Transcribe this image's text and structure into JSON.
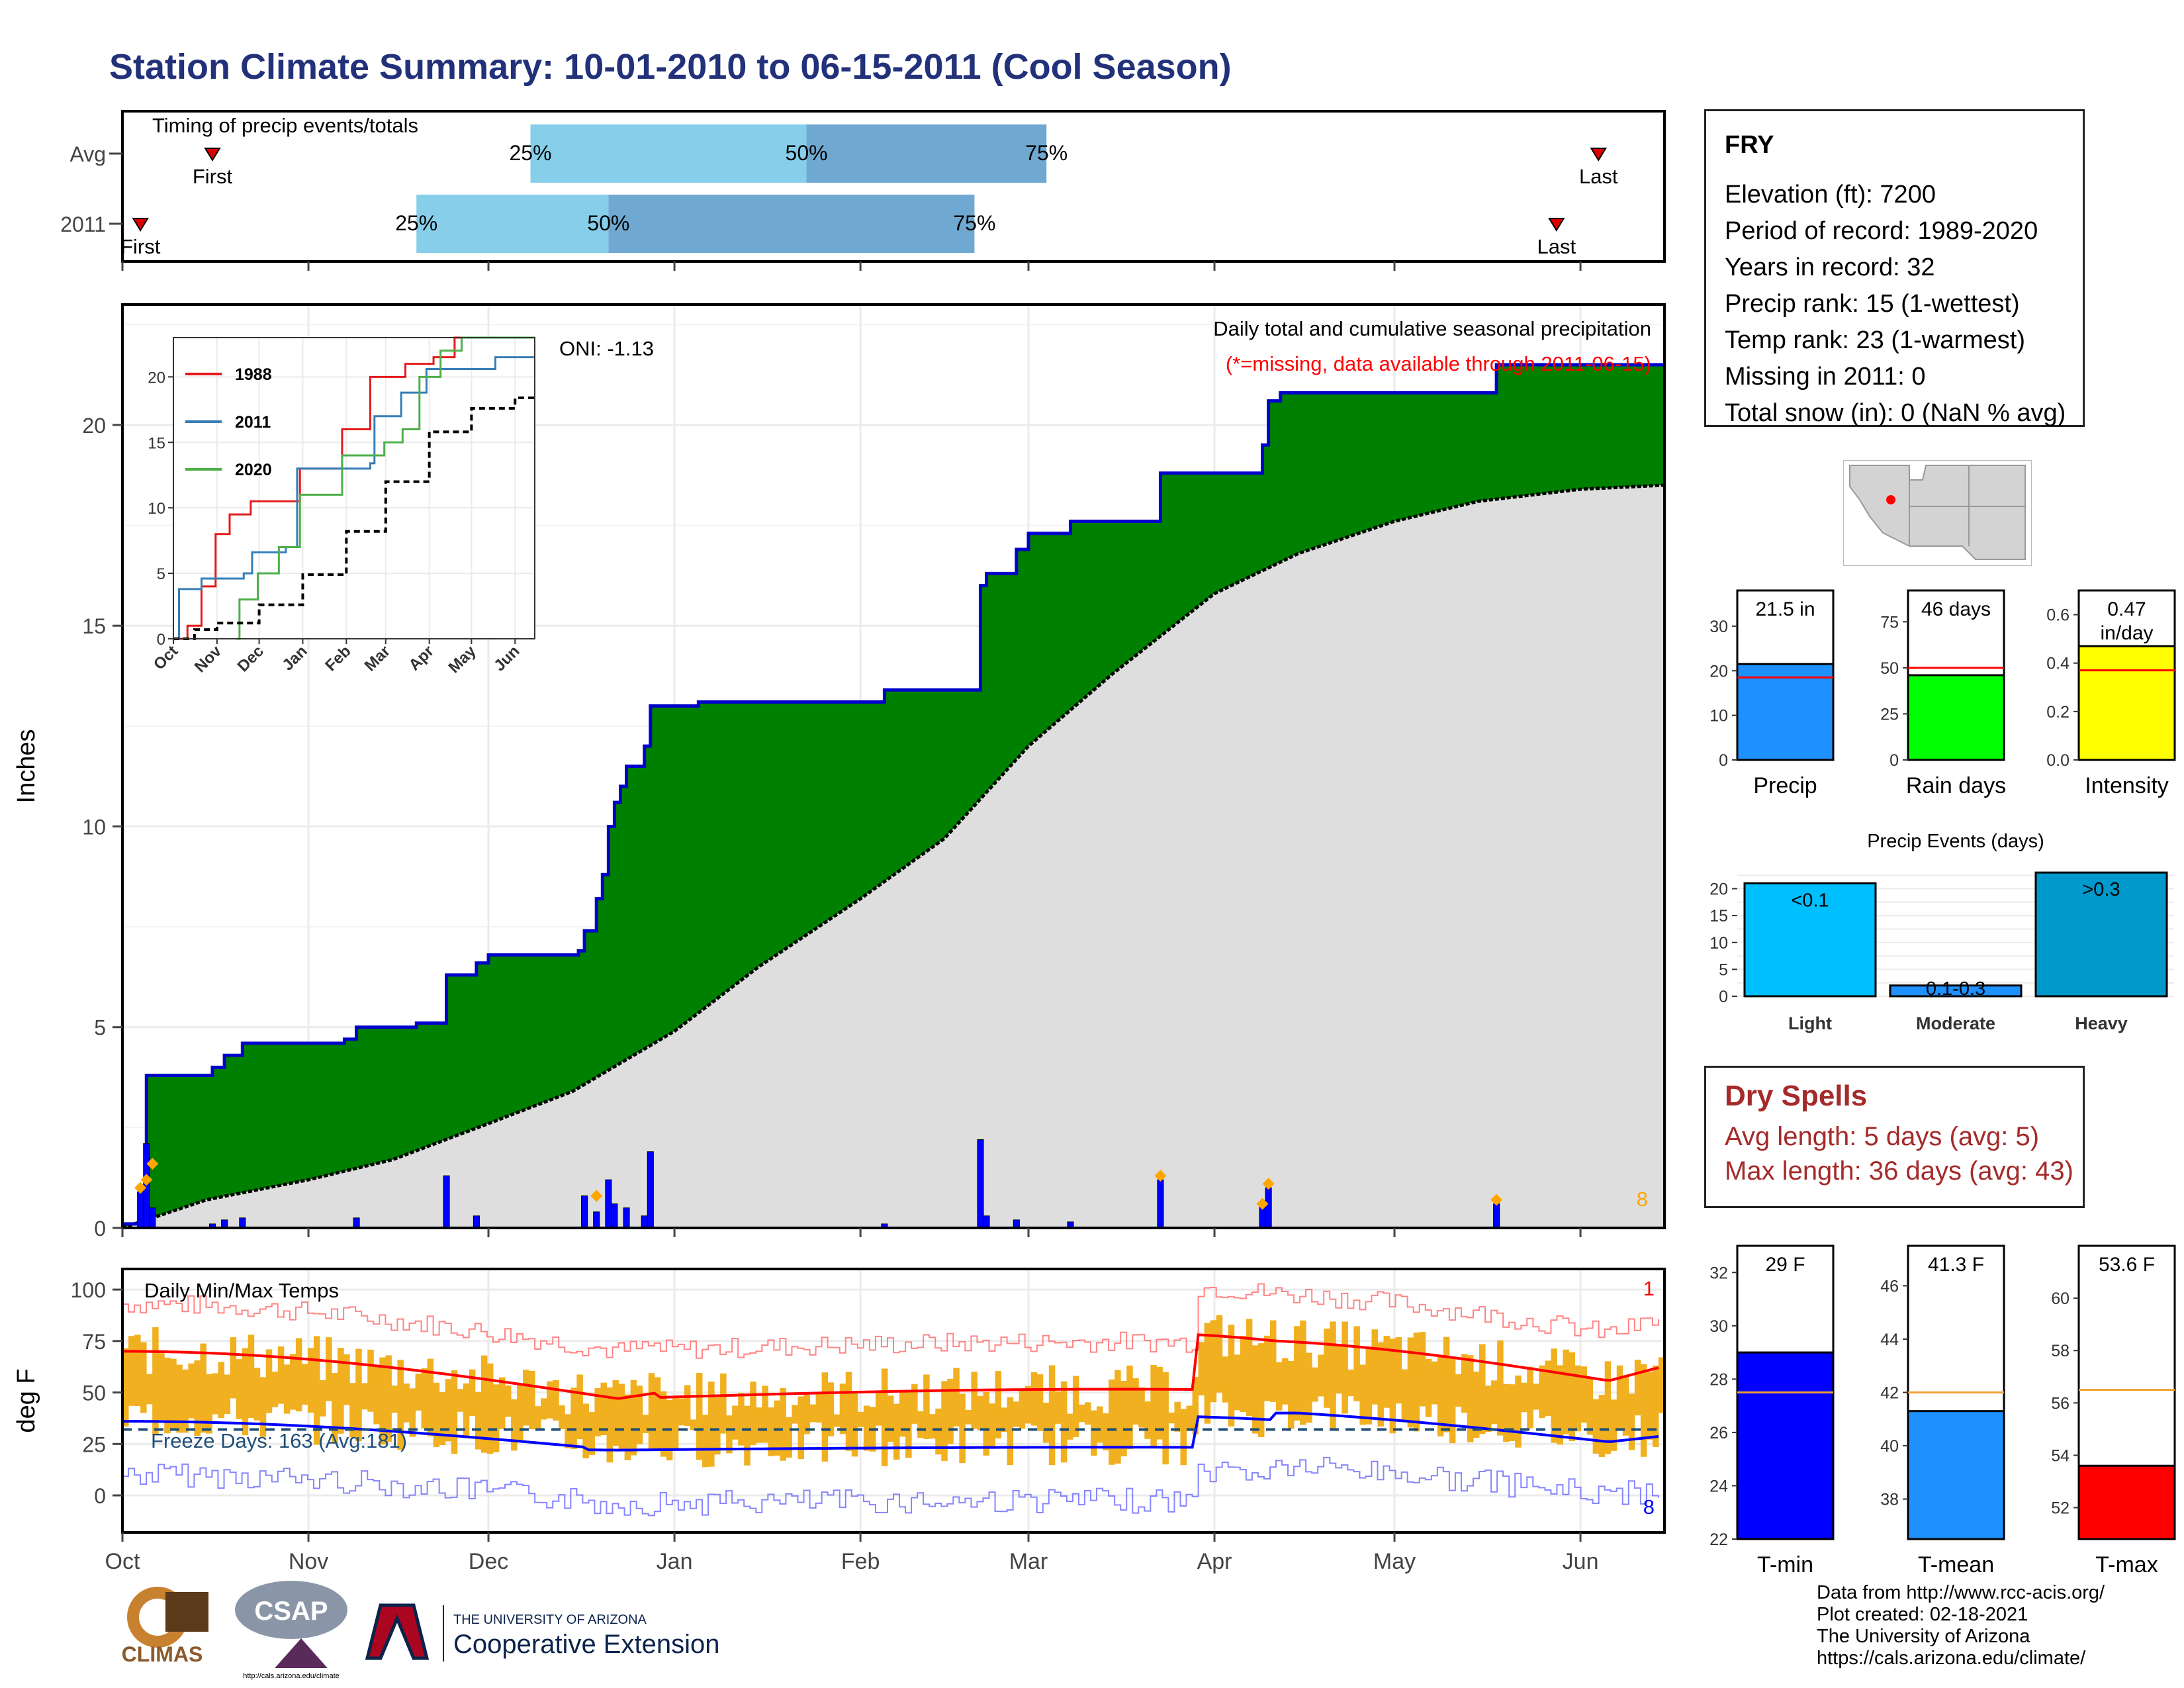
{
  "title": "Station Climate Summary: 10-01-2010 to 06-15-2011 (Cool Season)",
  "station": {
    "name": "FRY",
    "lines": [
      "Elevation (ft): 7200",
      "Period of record: 1989-2020",
      "Years in record: 32",
      "Precip rank: 15 (1-wettest)",
      "Temp rank: 23 (1-warmest)",
      "Missing in 2011: 0",
      "Total snow (in): 0 (NaN % avg)"
    ]
  },
  "dry_spells": {
    "heading": "Dry Spells",
    "avg": "Avg length: 5 days (avg: 5)",
    "max": "Max length: 36 days (avg: 43)"
  },
  "footer": {
    "lines": [
      "Data from http://www.rcc-acis.org/",
      "Plot created: 02-18-2021",
      "The University of Arizona",
      "https://cals.arizona.edu/climate/"
    ]
  },
  "logos": {
    "climas": "CLIMAS",
    "csap": "CSAP",
    "csap_url": "http://cals.arizona.edu/climate",
    "ua_small": "THE UNIVERSITY OF ARIZONA",
    "ua_big": "Cooperative Extension"
  },
  "colors": {
    "title": "#22317a",
    "cum_fill": "#008000",
    "cum_line": "#0000cc",
    "avg_fill": "#dedede",
    "daily_bar": "#0000ff",
    "snow_marker": "#ffa500",
    "temp_bar": "#f0b020",
    "tmax_line": "#ff0000",
    "tmin_line": "#0000ff",
    "light_blue": "#87ceeb",
    "mid_blue": "#6fa8d0",
    "dry": "#a52a2a"
  },
  "chart_data": [
    {
      "id": "timing",
      "type": "timeline",
      "title": "Timing of precip events/totals",
      "rows": [
        {
          "label": "Avg",
          "first": "2010-10-16",
          "p25": "2010-12-08",
          "p50": "2011-01-23",
          "p75": "2011-03-04",
          "last": "2011-06-04",
          "first_label": "First",
          "last_label": "Last"
        },
        {
          "label": "2011",
          "first": "2010-10-04",
          "p25": "2010-11-19",
          "p50": "2010-12-21",
          "p75": "2011-02-20",
          "last": "2011-05-28",
          "first_label": "First",
          "last_label": "Last"
        }
      ],
      "pct_labels": [
        "25%",
        "50%",
        "75%"
      ]
    },
    {
      "id": "precip",
      "type": "area",
      "title": "Daily total and cumulative seasonal precipitation",
      "subtitle": "(*=missing, data available through 2011-06-15)",
      "annotation": "ONI: -1.13",
      "corner_count": "8",
      "ylabel": "Inches",
      "ylim": [
        0,
        23
      ],
      "yticks": [
        0,
        5,
        10,
        15,
        20
      ],
      "x_ticks": [
        "Oct",
        "Nov",
        "Dec",
        "Jan",
        "Feb",
        "Mar",
        "Apr",
        "May",
        "Jun"
      ],
      "x_tick_dates": [
        "2010-10-01",
        "2010-11-01",
        "2010-12-01",
        "2011-01-01",
        "2011-02-01",
        "2011-03-01",
        "2011-04-01",
        "2011-05-01",
        "2011-06-01"
      ],
      "x_range": [
        "2010-10-01",
        "2011-06-15"
      ],
      "cumulative": [
        {
          "date": "2010-10-01",
          "value": 0.1
        },
        {
          "date": "2010-10-04",
          "value": 1.0
        },
        {
          "date": "2010-10-05",
          "value": 3.8
        },
        {
          "date": "2010-10-14",
          "value": 3.8
        },
        {
          "date": "2010-10-16",
          "value": 4.0
        },
        {
          "date": "2010-10-18",
          "value": 4.3
        },
        {
          "date": "2010-10-21",
          "value": 4.6
        },
        {
          "date": "2010-11-07",
          "value": 4.7
        },
        {
          "date": "2010-11-09",
          "value": 5.0
        },
        {
          "date": "2010-11-19",
          "value": 5.1
        },
        {
          "date": "2010-11-24",
          "value": 6.3
        },
        {
          "date": "2010-11-29",
          "value": 6.6
        },
        {
          "date": "2010-12-01",
          "value": 6.8
        },
        {
          "date": "2010-12-16",
          "value": 6.9
        },
        {
          "date": "2010-12-17",
          "value": 7.4
        },
        {
          "date": "2010-12-19",
          "value": 8.2
        },
        {
          "date": "2010-12-20",
          "value": 8.8
        },
        {
          "date": "2010-12-21",
          "value": 10.0
        },
        {
          "date": "2010-12-22",
          "value": 10.6
        },
        {
          "date": "2010-12-23",
          "value": 11.0
        },
        {
          "date": "2010-12-24",
          "value": 11.5
        },
        {
          "date": "2010-12-27",
          "value": 12.0
        },
        {
          "date": "2010-12-28",
          "value": 13.0
        },
        {
          "date": "2011-01-05",
          "value": 13.1
        },
        {
          "date": "2011-02-05",
          "value": 13.4
        },
        {
          "date": "2011-02-20",
          "value": 13.4
        },
        {
          "date": "2011-02-21",
          "value": 16.0
        },
        {
          "date": "2011-02-22",
          "value": 16.3
        },
        {
          "date": "2011-02-27",
          "value": 16.9
        },
        {
          "date": "2011-03-01",
          "value": 17.3
        },
        {
          "date": "2011-03-08",
          "value": 17.6
        },
        {
          "date": "2011-03-23",
          "value": 18.8
        },
        {
          "date": "2011-04-09",
          "value": 19.5
        },
        {
          "date": "2011-04-10",
          "value": 20.6
        },
        {
          "date": "2011-04-12",
          "value": 20.8
        },
        {
          "date": "2011-05-18",
          "value": 21.5
        },
        {
          "date": "2011-06-15",
          "value": 21.5
        }
      ],
      "average_cumulative": [
        {
          "date": "2010-10-01",
          "value": 0.0
        },
        {
          "date": "2010-10-15",
          "value": 0.7
        },
        {
          "date": "2010-11-01",
          "value": 1.2
        },
        {
          "date": "2010-11-15",
          "value": 1.7
        },
        {
          "date": "2010-12-01",
          "value": 2.6
        },
        {
          "date": "2010-12-15",
          "value": 3.4
        },
        {
          "date": "2011-01-01",
          "value": 4.9
        },
        {
          "date": "2011-01-15",
          "value": 6.5
        },
        {
          "date": "2011-02-01",
          "value": 8.2
        },
        {
          "date": "2011-02-15",
          "value": 9.7
        },
        {
          "date": "2011-03-01",
          "value": 12.0
        },
        {
          "date": "2011-03-15",
          "value": 13.8
        },
        {
          "date": "2011-04-01",
          "value": 15.8
        },
        {
          "date": "2011-04-15",
          "value": 16.8
        },
        {
          "date": "2011-05-01",
          "value": 17.6
        },
        {
          "date": "2011-05-15",
          "value": 18.1
        },
        {
          "date": "2011-06-01",
          "value": 18.4
        },
        {
          "date": "2011-06-15",
          "value": 18.5
        }
      ],
      "daily": [
        {
          "date": "2010-10-04",
          "value": 0.9
        },
        {
          "date": "2010-10-05",
          "value": 2.1
        },
        {
          "date": "2010-10-06",
          "value": 0.5
        },
        {
          "date": "2010-10-16",
          "value": 0.1
        },
        {
          "date": "2010-10-18",
          "value": 0.2
        },
        {
          "date": "2010-10-21",
          "value": 0.25
        },
        {
          "date": "2010-11-09",
          "value": 0.25
        },
        {
          "date": "2010-11-24",
          "value": 1.3
        },
        {
          "date": "2010-11-29",
          "value": 0.3
        },
        {
          "date": "2010-12-17",
          "value": 0.8
        },
        {
          "date": "2010-12-19",
          "value": 0.4
        },
        {
          "date": "2010-12-21",
          "value": 1.2
        },
        {
          "date": "2010-12-22",
          "value": 0.6
        },
        {
          "date": "2010-12-24",
          "value": 0.5
        },
        {
          "date": "2010-12-27",
          "value": 0.3
        },
        {
          "date": "2010-12-28",
          "value": 1.9
        },
        {
          "date": "2011-02-05",
          "value": 0.1
        },
        {
          "date": "2011-02-21",
          "value": 2.2
        },
        {
          "date": "2011-02-22",
          "value": 0.3
        },
        {
          "date": "2011-02-27",
          "value": 0.2
        },
        {
          "date": "2011-03-08",
          "value": 0.15
        },
        {
          "date": "2011-03-23",
          "value": 1.2
        },
        {
          "date": "2011-04-09",
          "value": 0.6
        },
        {
          "date": "2011-04-10",
          "value": 1.0
        },
        {
          "date": "2011-05-18",
          "value": 0.6
        }
      ],
      "snow_markers": [
        {
          "date": "2010-10-04",
          "value": 1.0
        },
        {
          "date": "2010-10-05",
          "value": 1.2
        },
        {
          "date": "2010-10-06",
          "value": 1.6
        },
        {
          "date": "2010-12-19",
          "value": 0.8
        },
        {
          "date": "2011-03-23",
          "value": 1.3
        },
        {
          "date": "2011-04-09",
          "value": 0.6
        },
        {
          "date": "2011-04-10",
          "value": 1.1
        },
        {
          "date": "2011-05-18",
          "value": 0.7
        }
      ]
    },
    {
      "id": "inset",
      "type": "line",
      "ylim": [
        0,
        23
      ],
      "yticks": [
        0,
        5,
        10,
        15,
        20
      ],
      "x_ticks": [
        "Oct",
        "Nov",
        "Dec",
        "Jan",
        "Feb",
        "Mar",
        "Apr",
        "May",
        "Jun"
      ],
      "series": [
        {
          "name": "1988",
          "color": "#e41a1c",
          "points": [
            [
              0,
              0
            ],
            [
              10,
              1
            ],
            [
              20,
              4
            ],
            [
              30,
              8
            ],
            [
              40,
              9.5
            ],
            [
              55,
              10.5
            ],
            [
              90,
              13
            ],
            [
              120,
              16
            ],
            [
              140,
              20
            ],
            [
              165,
              21
            ],
            [
              185,
              21.5
            ],
            [
              200,
              23
            ],
            [
              215,
              23
            ],
            [
              257,
              23
            ]
          ]
        },
        {
          "name": "2011",
          "color": "#377eb8",
          "points": [
            [
              0,
              0
            ],
            [
              4,
              3.8
            ],
            [
              20,
              4.6
            ],
            [
              50,
              5
            ],
            [
              56,
              6.6
            ],
            [
              80,
              7
            ],
            [
              88,
              13
            ],
            [
              140,
              13.4
            ],
            [
              143,
              17
            ],
            [
              162,
              18.8
            ],
            [
              180,
              20.6
            ],
            [
              229,
              21.5
            ],
            [
              257,
              21.5
            ]
          ]
        },
        {
          "name": "2020",
          "color": "#4daf4a",
          "points": [
            [
              45,
              0
            ],
            [
              47,
              3
            ],
            [
              60,
              5
            ],
            [
              75,
              7
            ],
            [
              90,
              11
            ],
            [
              120,
              14
            ],
            [
              150,
              15
            ],
            [
              163,
              16
            ],
            [
              175,
              20
            ],
            [
              190,
              22
            ],
            [
              205,
              23
            ],
            [
              257,
              23
            ]
          ]
        },
        {
          "name": "",
          "color": "#000000",
          "dashed": true,
          "points": [
            [
              0,
              0
            ],
            [
              15,
              0.7
            ],
            [
              31,
              1.2
            ],
            [
              61,
              2.6
            ],
            [
              92,
              4.9
            ],
            [
              123,
              8.2
            ],
            [
              151,
              12
            ],
            [
              182,
              15.8
            ],
            [
              212,
              17.6
            ],
            [
              243,
              18.4
            ],
            [
              257,
              18.5
            ]
          ]
        }
      ]
    },
    {
      "id": "temps",
      "type": "bar",
      "title": "Daily Min/Max Temps",
      "ylabel": "deg F",
      "ylim": [
        -18,
        110
      ],
      "yticks": [
        0,
        25,
        50,
        75,
        100
      ],
      "freeze_label": "Freeze Days: 163 (Avg:181)",
      "freeze_line": 32,
      "top_count": "1",
      "bottom_count": "8",
      "x_ticks": [
        "Oct",
        "Nov",
        "Dec",
        "Jan",
        "Feb",
        "Mar",
        "Apr",
        "May",
        "Jun"
      ]
    },
    {
      "id": "precip_bars",
      "type": "bar",
      "panels": [
        {
          "label": "Precip",
          "value": 21.5,
          "avg": 18.5,
          "value_label": "21.5 in",
          "ylim": [
            0,
            38
          ],
          "yticks": [
            0,
            10,
            20,
            30
          ],
          "color": "#1e90ff"
        },
        {
          "label": "Rain days",
          "value": 46,
          "avg": 50,
          "value_label": "46 days",
          "ylim": [
            0,
            92
          ],
          "yticks": [
            0,
            25,
            50,
            75
          ],
          "color": "#00ff00"
        },
        {
          "label": "Intensity",
          "value": 0.47,
          "avg": 0.37,
          "value_label": "0.47\nin/day",
          "ylim": [
            0,
            0.7
          ],
          "yticks": [
            "0.0",
            "0.2",
            "0.4",
            "0.6"
          ],
          "color": "#ffff00"
        }
      ]
    },
    {
      "id": "precip_events",
      "type": "bar",
      "title": "Precip Events (days)",
      "categories": [
        "Light",
        "Moderate",
        "Heavy"
      ],
      "values": [
        21,
        2,
        23
      ],
      "value_labels": [
        "<0.1",
        "0.1-0.3",
        ">0.3"
      ],
      "colors": [
        "#00bfff",
        "#1e90ff",
        "#0099cc"
      ],
      "ylim": [
        0,
        24
      ],
      "yticks": [
        0,
        5,
        10,
        15,
        20
      ]
    },
    {
      "id": "temp_bars",
      "type": "bar",
      "panels": [
        {
          "label": "T-min",
          "value": 29,
          "avg": 27.5,
          "value_label": "29 F",
          "ylim": [
            22,
            33
          ],
          "yticks": [
            22,
            24,
            26,
            28,
            30,
            32
          ],
          "color": "#0000ff"
        },
        {
          "label": "T-mean",
          "value": 41.3,
          "avg": 42,
          "value_label": "41.3 F",
          "ylim": [
            36.5,
            47.5
          ],
          "yticks": [
            38,
            40,
            42,
            44,
            46
          ],
          "color": "#1e90ff"
        },
        {
          "label": "T-max",
          "value": 53.6,
          "avg": 56.5,
          "value_label": "53.6 F",
          "ylim": [
            50.8,
            62
          ],
          "yticks": [
            52,
            54,
            56,
            58,
            60
          ],
          "color": "#ff0000"
        }
      ]
    }
  ]
}
